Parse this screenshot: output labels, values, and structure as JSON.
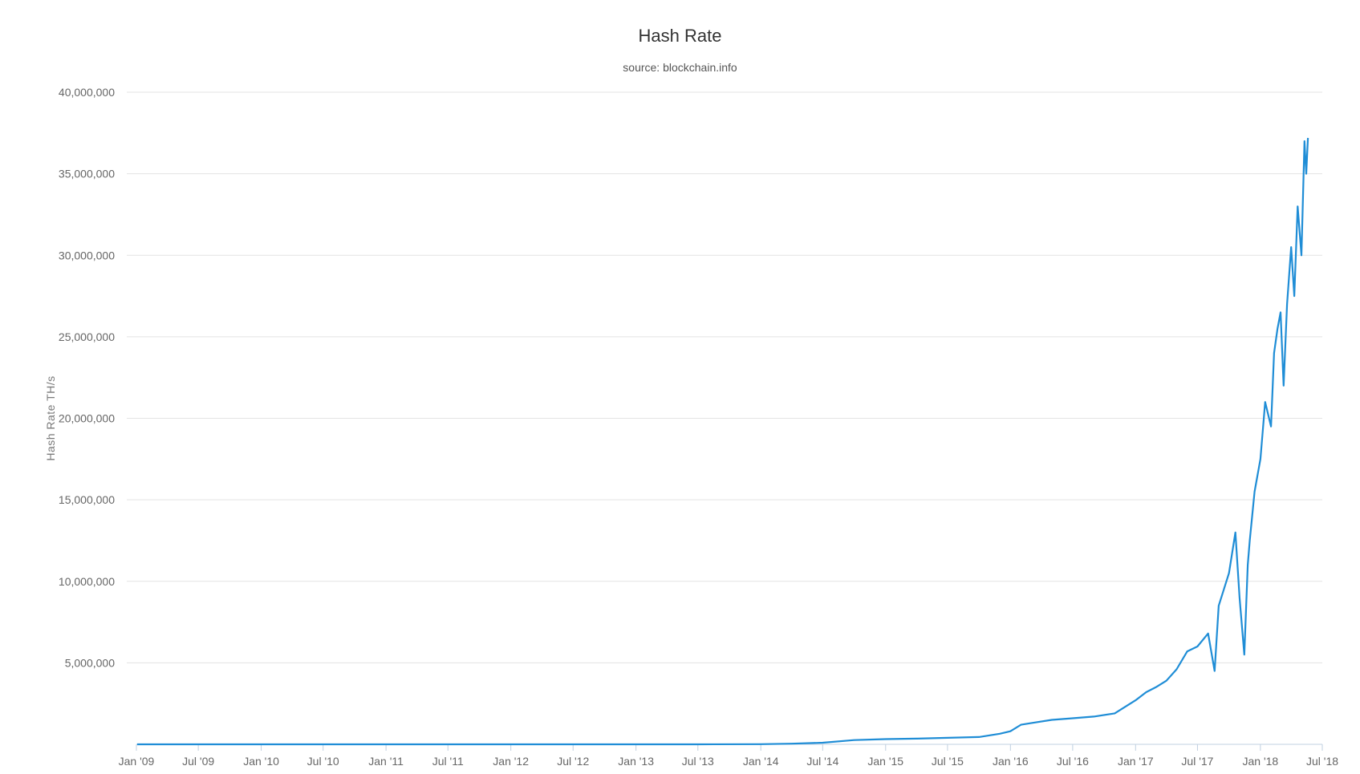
{
  "chart_data": {
    "type": "line",
    "title": "Hash Rate",
    "subtitle": "source: blockchain.info",
    "ylabel": "Hash Rate TH/s",
    "xlabel": "",
    "ylim": [
      0,
      40000000
    ],
    "xlim": [
      "2009-01-01",
      "2018-07-01"
    ],
    "grid": true,
    "legend": "none",
    "y_ticks": [
      {
        "value": 5000000,
        "label": "5,000,000"
      },
      {
        "value": 10000000,
        "label": "10,000,000"
      },
      {
        "value": 15000000,
        "label": "15,000,000"
      },
      {
        "value": 20000000,
        "label": "20,000,000"
      },
      {
        "value": 25000000,
        "label": "25,000,000"
      },
      {
        "value": 30000000,
        "label": "30,000,000"
      },
      {
        "value": 35000000,
        "label": "35,000,000"
      },
      {
        "value": 40000000,
        "label": "40,000,000"
      }
    ],
    "x_ticks": [
      {
        "date": "2009-01-01",
        "label": "Jan '09"
      },
      {
        "date": "2009-07-01",
        "label": "Jul '09"
      },
      {
        "date": "2010-01-01",
        "label": "Jan '10"
      },
      {
        "date": "2010-07-01",
        "label": "Jul '10"
      },
      {
        "date": "2011-01-01",
        "label": "Jan '11"
      },
      {
        "date": "2011-07-01",
        "label": "Jul '11"
      },
      {
        "date": "2012-01-01",
        "label": "Jan '12"
      },
      {
        "date": "2012-07-01",
        "label": "Jul '12"
      },
      {
        "date": "2013-01-01",
        "label": "Jan '13"
      },
      {
        "date": "2013-07-01",
        "label": "Jul '13"
      },
      {
        "date": "2014-01-01",
        "label": "Jan '14"
      },
      {
        "date": "2014-07-01",
        "label": "Jul '14"
      },
      {
        "date": "2015-01-01",
        "label": "Jan '15"
      },
      {
        "date": "2015-07-01",
        "label": "Jul '15"
      },
      {
        "date": "2016-01-01",
        "label": "Jan '16"
      },
      {
        "date": "2016-07-01",
        "label": "Jul '16"
      },
      {
        "date": "2017-01-01",
        "label": "Jan '17"
      },
      {
        "date": "2017-07-01",
        "label": "Jul '17"
      },
      {
        "date": "2018-01-01",
        "label": "Jan '18"
      },
      {
        "date": "2018-07-01",
        "label": "Jul '18"
      }
    ],
    "series": [
      {
        "color": "#1f8dd6",
        "points": [
          [
            "2009-01-03",
            0
          ],
          [
            "2011-01-01",
            0
          ],
          [
            "2013-01-01",
            25
          ],
          [
            "2013-07-01",
            300
          ],
          [
            "2014-01-01",
            10000
          ],
          [
            "2014-04-01",
            40000
          ],
          [
            "2014-07-01",
            100000
          ],
          [
            "2014-10-01",
            260000
          ],
          [
            "2015-01-01",
            320000
          ],
          [
            "2015-04-01",
            350000
          ],
          [
            "2015-07-01",
            400000
          ],
          [
            "2015-10-01",
            450000
          ],
          [
            "2015-12-01",
            650000
          ],
          [
            "2016-01-01",
            800000
          ],
          [
            "2016-02-01",
            1200000
          ],
          [
            "2016-03-01",
            1300000
          ],
          [
            "2016-05-01",
            1500000
          ],
          [
            "2016-07-01",
            1600000
          ],
          [
            "2016-09-01",
            1700000
          ],
          [
            "2016-11-01",
            1900000
          ],
          [
            "2017-01-01",
            2700000
          ],
          [
            "2017-02-01",
            3200000
          ],
          [
            "2017-03-01",
            3500000
          ],
          [
            "2017-04-01",
            3900000
          ],
          [
            "2017-05-01",
            4600000
          ],
          [
            "2017-06-01",
            5700000
          ],
          [
            "2017-07-01",
            6000000
          ],
          [
            "2017-08-01",
            6800000
          ],
          [
            "2017-08-20",
            4500000
          ],
          [
            "2017-09-01",
            8500000
          ],
          [
            "2017-10-01",
            10500000
          ],
          [
            "2017-10-20",
            13000000
          ],
          [
            "2017-11-01",
            9000000
          ],
          [
            "2017-11-15",
            5500000
          ],
          [
            "2017-11-25",
            11000000
          ],
          [
            "2017-12-01",
            12500000
          ],
          [
            "2017-12-15",
            15500000
          ],
          [
            "2018-01-01",
            17500000
          ],
          [
            "2018-01-15",
            21000000
          ],
          [
            "2018-02-01",
            19500000
          ],
          [
            "2018-02-10",
            24000000
          ],
          [
            "2018-02-20",
            25500000
          ],
          [
            "2018-03-01",
            26500000
          ],
          [
            "2018-03-10",
            22000000
          ],
          [
            "2018-03-20",
            27000000
          ],
          [
            "2018-04-01",
            30500000
          ],
          [
            "2018-04-10",
            27500000
          ],
          [
            "2018-04-20",
            33000000
          ],
          [
            "2018-05-01",
            30000000
          ],
          [
            "2018-05-10",
            37000000
          ],
          [
            "2018-05-15",
            35000000
          ],
          [
            "2018-05-20",
            37200000
          ]
        ]
      }
    ]
  }
}
